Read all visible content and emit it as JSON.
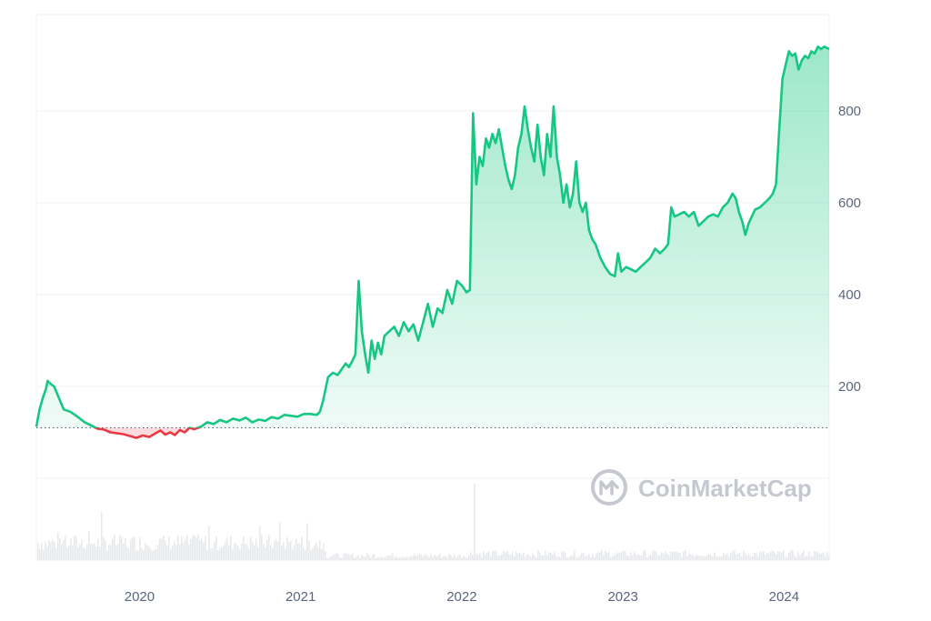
{
  "chart_data": {
    "type": "area",
    "x_axis": {
      "ticks": [
        "2020",
        "2021",
        "2022",
        "2023",
        "2024"
      ]
    },
    "y_axis": {
      "ticks": [
        200,
        400,
        600,
        800
      ],
      "range": [
        0,
        1010
      ],
      "position": "right"
    },
    "baseline": 110,
    "colors": {
      "up": "#16c784",
      "down": "#ea3943",
      "grid": "#eff2f5",
      "volume": "#e6e9ed"
    },
    "watermark": "CoinMarketCap",
    "series": [
      {
        "values": [
          [
            2019.36,
            112
          ],
          [
            2019.38,
            150
          ],
          [
            2019.4,
            175
          ],
          [
            2019.42,
            195
          ],
          [
            2019.43,
            212
          ],
          [
            2019.45,
            205
          ],
          [
            2019.47,
            200
          ],
          [
            2019.5,
            175
          ],
          [
            2019.53,
            150
          ],
          [
            2019.57,
            145
          ],
          [
            2019.6,
            138
          ],
          [
            2019.63,
            130
          ],
          [
            2019.66,
            122
          ],
          [
            2019.7,
            115
          ],
          [
            2019.74,
            108
          ],
          [
            2019.78,
            106
          ],
          [
            2019.82,
            100
          ],
          [
            2019.86,
            98
          ],
          [
            2019.9,
            96
          ],
          [
            2019.94,
            92
          ],
          [
            2019.98,
            88
          ],
          [
            2020.02,
            93
          ],
          [
            2020.06,
            90
          ],
          [
            2020.1,
            98
          ],
          [
            2020.13,
            104
          ],
          [
            2020.16,
            95
          ],
          [
            2020.19,
            100
          ],
          [
            2020.22,
            94
          ],
          [
            2020.25,
            105
          ],
          [
            2020.28,
            100
          ],
          [
            2020.31,
            110
          ],
          [
            2020.34,
            107
          ],
          [
            2020.38,
            112
          ],
          [
            2020.42,
            122
          ],
          [
            2020.46,
            118
          ],
          [
            2020.5,
            127
          ],
          [
            2020.54,
            122
          ],
          [
            2020.58,
            130
          ],
          [
            2020.62,
            126
          ],
          [
            2020.66,
            132
          ],
          [
            2020.7,
            122
          ],
          [
            2020.74,
            128
          ],
          [
            2020.78,
            125
          ],
          [
            2020.82,
            133
          ],
          [
            2020.86,
            130
          ],
          [
            2020.9,
            138
          ],
          [
            2020.94,
            136
          ],
          [
            2020.98,
            134
          ],
          [
            2021.02,
            140
          ],
          [
            2021.06,
            140
          ],
          [
            2021.1,
            138
          ],
          [
            2021.12,
            145
          ],
          [
            2021.14,
            170
          ],
          [
            2021.17,
            220
          ],
          [
            2021.2,
            230
          ],
          [
            2021.23,
            225
          ],
          [
            2021.26,
            240
          ],
          [
            2021.28,
            250
          ],
          [
            2021.3,
            242
          ],
          [
            2021.32,
            255
          ],
          [
            2021.34,
            270
          ],
          [
            2021.36,
            430
          ],
          [
            2021.38,
            320
          ],
          [
            2021.4,
            270
          ],
          [
            2021.42,
            230
          ],
          [
            2021.44,
            300
          ],
          [
            2021.46,
            260
          ],
          [
            2021.48,
            295
          ],
          [
            2021.5,
            270
          ],
          [
            2021.52,
            310
          ],
          [
            2021.55,
            320
          ],
          [
            2021.58,
            330
          ],
          [
            2021.61,
            310
          ],
          [
            2021.64,
            340
          ],
          [
            2021.67,
            320
          ],
          [
            2021.7,
            335
          ],
          [
            2021.73,
            300
          ],
          [
            2021.76,
            340
          ],
          [
            2021.79,
            380
          ],
          [
            2021.82,
            330
          ],
          [
            2021.85,
            370
          ],
          [
            2021.88,
            360
          ],
          [
            2021.91,
            410
          ],
          [
            2021.94,
            380
          ],
          [
            2021.97,
            430
          ],
          [
            2022.0,
            420
          ],
          [
            2022.03,
            405
          ],
          [
            2022.05,
            410
          ],
          [
            2022.07,
            795
          ],
          [
            2022.09,
            640
          ],
          [
            2022.11,
            700
          ],
          [
            2022.13,
            680
          ],
          [
            2022.15,
            740
          ],
          [
            2022.17,
            720
          ],
          [
            2022.19,
            750
          ],
          [
            2022.21,
            730
          ],
          [
            2022.23,
            760
          ],
          [
            2022.25,
            720
          ],
          [
            2022.27,
            680
          ],
          [
            2022.29,
            650
          ],
          [
            2022.31,
            630
          ],
          [
            2022.33,
            660
          ],
          [
            2022.35,
            720
          ],
          [
            2022.37,
            750
          ],
          [
            2022.39,
            810
          ],
          [
            2022.41,
            760
          ],
          [
            2022.43,
            720
          ],
          [
            2022.45,
            690
          ],
          [
            2022.47,
            770
          ],
          [
            2022.49,
            700
          ],
          [
            2022.51,
            660
          ],
          [
            2022.53,
            750
          ],
          [
            2022.55,
            700
          ],
          [
            2022.57,
            810
          ],
          [
            2022.59,
            700
          ],
          [
            2022.61,
            660
          ],
          [
            2022.63,
            600
          ],
          [
            2022.65,
            640
          ],
          [
            2022.67,
            590
          ],
          [
            2022.69,
            620
          ],
          [
            2022.71,
            690
          ],
          [
            2022.73,
            600
          ],
          [
            2022.75,
            580
          ],
          [
            2022.77,
            600
          ],
          [
            2022.79,
            540
          ],
          [
            2022.81,
            520
          ],
          [
            2022.83,
            510
          ],
          [
            2022.86,
            480
          ],
          [
            2022.89,
            460
          ],
          [
            2022.92,
            445
          ],
          [
            2022.95,
            440
          ],
          [
            2022.97,
            490
          ],
          [
            2022.99,
            450
          ],
          [
            2023.02,
            460
          ],
          [
            2023.05,
            455
          ],
          [
            2023.08,
            450
          ],
          [
            2023.11,
            460
          ],
          [
            2023.14,
            470
          ],
          [
            2023.17,
            480
          ],
          [
            2023.2,
            500
          ],
          [
            2023.23,
            490
          ],
          [
            2023.26,
            500
          ],
          [
            2023.28,
            510
          ],
          [
            2023.3,
            590
          ],
          [
            2023.32,
            570
          ],
          [
            2023.35,
            575
          ],
          [
            2023.38,
            580
          ],
          [
            2023.41,
            570
          ],
          [
            2023.44,
            580
          ],
          [
            2023.47,
            550
          ],
          [
            2023.5,
            560
          ],
          [
            2023.53,
            570
          ],
          [
            2023.56,
            575
          ],
          [
            2023.59,
            570
          ],
          [
            2023.62,
            590
          ],
          [
            2023.65,
            600
          ],
          [
            2023.68,
            620
          ],
          [
            2023.7,
            610
          ],
          [
            2023.72,
            580
          ],
          [
            2023.74,
            560
          ],
          [
            2023.76,
            530
          ],
          [
            2023.78,
            555
          ],
          [
            2023.8,
            570
          ],
          [
            2023.82,
            585
          ],
          [
            2023.85,
            590
          ],
          [
            2023.88,
            600
          ],
          [
            2023.91,
            610
          ],
          [
            2023.93,
            620
          ],
          [
            2023.95,
            640
          ],
          [
            2023.97,
            760
          ],
          [
            2023.99,
            870
          ],
          [
            2024.01,
            900
          ],
          [
            2024.03,
            930
          ],
          [
            2024.05,
            920
          ],
          [
            2024.07,
            925
          ],
          [
            2024.09,
            890
          ],
          [
            2024.11,
            910
          ],
          [
            2024.13,
            920
          ],
          [
            2024.15,
            915
          ],
          [
            2024.17,
            930
          ],
          [
            2024.19,
            925
          ],
          [
            2024.21,
            940
          ],
          [
            2024.23,
            935
          ],
          [
            2024.25,
            940
          ],
          [
            2024.28,
            935
          ]
        ]
      }
    ]
  }
}
